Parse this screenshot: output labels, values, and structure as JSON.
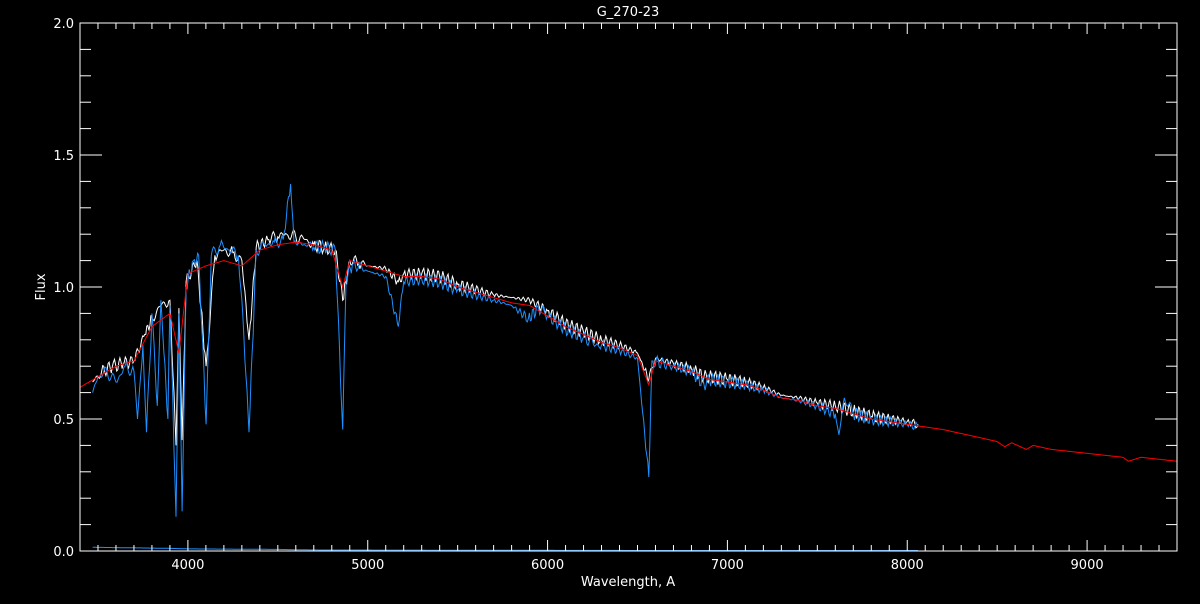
{
  "chart_data": {
    "type": "line",
    "title": "G_270-23",
    "xlabel": "Wavelength, A",
    "ylabel": "Flux",
    "xlim": [
      3400,
      9500
    ],
    "ylim": [
      0.0,
      2.0
    ],
    "xticks": [
      "4000",
      "5000",
      "6000",
      "7000",
      "8000",
      "9000"
    ],
    "yticks": [
      "0.0",
      "0.5",
      "1.0",
      "1.5",
      "2.0"
    ],
    "grid": false,
    "background": "#000000",
    "series": [
      {
        "color": "#ffffff",
        "points": [
          [
            3470,
            0.64
          ],
          [
            3520,
            0.68
          ],
          [
            3580,
            0.7
          ],
          [
            3640,
            0.71
          ],
          [
            3700,
            0.72
          ],
          [
            3760,
            0.82
          ],
          [
            3800,
            0.88
          ],
          [
            3850,
            0.93
          ],
          [
            3900,
            0.95
          ],
          [
            3934,
            0.4
          ],
          [
            3950,
            0.92
          ],
          [
            3968,
            0.42
          ],
          [
            3990,
            1.02
          ],
          [
            4050,
            1.1
          ],
          [
            4101,
            0.7
          ],
          [
            4150,
            1.12
          ],
          [
            4200,
            1.14
          ],
          [
            4250,
            1.13
          ],
          [
            4300,
            1.1
          ],
          [
            4340,
            0.8
          ],
          [
            4380,
            1.15
          ],
          [
            4450,
            1.18
          ],
          [
            4500,
            1.19
          ],
          [
            4550,
            1.2
          ],
          [
            4600,
            1.19
          ],
          [
            4650,
            1.18
          ],
          [
            4700,
            1.16
          ],
          [
            4760,
            1.15
          ],
          [
            4820,
            1.14
          ],
          [
            4861,
            0.95
          ],
          [
            4900,
            1.1
          ],
          [
            4950,
            1.09
          ],
          [
            5000,
            1.08
          ],
          [
            5100,
            1.07
          ],
          [
            5170,
            1.02
          ],
          [
            5200,
            1.05
          ],
          [
            5300,
            1.05
          ],
          [
            5400,
            1.04
          ],
          [
            5500,
            1.01
          ],
          [
            5600,
            0.99
          ],
          [
            5700,
            0.97
          ],
          [
            5800,
            0.96
          ],
          [
            5900,
            0.95
          ],
          [
            6000,
            0.91
          ],
          [
            6100,
            0.86
          ],
          [
            6200,
            0.83
          ],
          [
            6300,
            0.8
          ],
          [
            6400,
            0.78
          ],
          [
            6500,
            0.75
          ],
          [
            6563,
            0.65
          ],
          [
            6600,
            0.73
          ],
          [
            6700,
            0.71
          ],
          [
            6800,
            0.69
          ],
          [
            6870,
            0.66
          ],
          [
            6900,
            0.66
          ],
          [
            7000,
            0.65
          ],
          [
            7100,
            0.64
          ],
          [
            7200,
            0.62
          ],
          [
            7300,
            0.59
          ],
          [
            7400,
            0.58
          ],
          [
            7500,
            0.56
          ],
          [
            7600,
            0.55
          ],
          [
            7700,
            0.53
          ],
          [
            7800,
            0.51
          ],
          [
            7900,
            0.5
          ],
          [
            8000,
            0.49
          ],
          [
            8060,
            0.48
          ]
        ]
      },
      {
        "color": "#1e90ff",
        "points": [
          [
            3470,
            0.6
          ],
          [
            3500,
            0.66
          ],
          [
            3550,
            0.68
          ],
          [
            3600,
            0.64
          ],
          [
            3650,
            0.7
          ],
          [
            3700,
            0.68
          ],
          [
            3720,
            0.5
          ],
          [
            3750,
            0.78
          ],
          [
            3770,
            0.45
          ],
          [
            3800,
            0.9
          ],
          [
            3830,
            0.55
          ],
          [
            3850,
            0.95
          ],
          [
            3889,
            0.5
          ],
          [
            3900,
            0.93
          ],
          [
            3934,
            0.13
          ],
          [
            3950,
            0.9
          ],
          [
            3968,
            0.15
          ],
          [
            3990,
            1.0
          ],
          [
            4030,
            1.1
          ],
          [
            4060,
            1.12
          ],
          [
            4101,
            0.48
          ],
          [
            4130,
            1.12
          ],
          [
            4180,
            1.16
          ],
          [
            4230,
            1.14
          ],
          [
            4280,
            1.12
          ],
          [
            4300,
            0.95
          ],
          [
            4340,
            0.45
          ],
          [
            4380,
            1.14
          ],
          [
            4430,
            1.16
          ],
          [
            4480,
            1.17
          ],
          [
            4530,
            1.18
          ],
          [
            4571,
            1.39
          ],
          [
            4590,
            1.17
          ],
          [
            4650,
            1.16
          ],
          [
            4700,
            1.15
          ],
          [
            4760,
            1.15
          ],
          [
            4820,
            1.14
          ],
          [
            4861,
            0.46
          ],
          [
            4880,
            1.04
          ],
          [
            4920,
            1.09
          ],
          [
            5000,
            1.06
          ],
          [
            5100,
            1.04
          ],
          [
            5170,
            0.85
          ],
          [
            5200,
            1.02
          ],
          [
            5300,
            1.03
          ],
          [
            5400,
            1.02
          ],
          [
            5500,
            0.99
          ],
          [
            5600,
            0.97
          ],
          [
            5700,
            0.95
          ],
          [
            5800,
            0.93
          ],
          [
            5893,
            0.88
          ],
          [
            5950,
            0.92
          ],
          [
            6000,
            0.89
          ],
          [
            6100,
            0.84
          ],
          [
            6200,
            0.81
          ],
          [
            6280,
            0.78
          ],
          [
            6300,
            0.78
          ],
          [
            6400,
            0.76
          ],
          [
            6500,
            0.73
          ],
          [
            6563,
            0.28
          ],
          [
            6580,
            0.72
          ],
          [
            6700,
            0.7
          ],
          [
            6800,
            0.68
          ],
          [
            6870,
            0.63
          ],
          [
            6900,
            0.65
          ],
          [
            7000,
            0.64
          ],
          [
            7100,
            0.63
          ],
          [
            7200,
            0.61
          ],
          [
            7300,
            0.58
          ],
          [
            7400,
            0.57
          ],
          [
            7500,
            0.55
          ],
          [
            7600,
            0.52
          ],
          [
            7620,
            0.44
          ],
          [
            7650,
            0.58
          ],
          [
            7700,
            0.52
          ],
          [
            7800,
            0.5
          ],
          [
            7900,
            0.49
          ],
          [
            8000,
            0.48
          ],
          [
            8060,
            0.47
          ]
        ]
      },
      {
        "color": "#ff0000",
        "points": [
          [
            3400,
            0.62
          ],
          [
            3500,
            0.66
          ],
          [
            3600,
            0.7
          ],
          [
            3700,
            0.72
          ],
          [
            3800,
            0.85
          ],
          [
            3900,
            0.9
          ],
          [
            3950,
            0.75
          ],
          [
            4000,
            1.05
          ],
          [
            4100,
            1.08
          ],
          [
            4200,
            1.1
          ],
          [
            4300,
            1.08
          ],
          [
            4400,
            1.14
          ],
          [
            4500,
            1.16
          ],
          [
            4600,
            1.17
          ],
          [
            4700,
            1.16
          ],
          [
            4800,
            1.14
          ],
          [
            4861,
            1.0
          ],
          [
            4900,
            1.1
          ],
          [
            5000,
            1.08
          ],
          [
            5100,
            1.06
          ],
          [
            5200,
            1.04
          ],
          [
            5300,
            1.04
          ],
          [
            5400,
            1.03
          ],
          [
            5500,
            1.0
          ],
          [
            5600,
            0.98
          ],
          [
            5700,
            0.96
          ],
          [
            5800,
            0.94
          ],
          [
            5900,
            0.93
          ],
          [
            6000,
            0.89
          ],
          [
            6100,
            0.85
          ],
          [
            6200,
            0.82
          ],
          [
            6300,
            0.79
          ],
          [
            6400,
            0.77
          ],
          [
            6500,
            0.74
          ],
          [
            6563,
            0.63
          ],
          [
            6600,
            0.72
          ],
          [
            6700,
            0.7
          ],
          [
            6800,
            0.68
          ],
          [
            6900,
            0.65
          ],
          [
            7000,
            0.64
          ],
          [
            7100,
            0.63
          ],
          [
            7200,
            0.61
          ],
          [
            7300,
            0.58
          ],
          [
            7400,
            0.57
          ],
          [
            7500,
            0.55
          ],
          [
            7600,
            0.54
          ],
          [
            7700,
            0.52
          ],
          [
            7800,
            0.5
          ],
          [
            7900,
            0.49
          ],
          [
            8000,
            0.48
          ],
          [
            8200,
            0.46
          ],
          [
            8400,
            0.43
          ],
          [
            8498,
            0.415
          ],
          [
            8542,
            0.395
          ],
          [
            8580,
            0.41
          ],
          [
            8662,
            0.385
          ],
          [
            8700,
            0.4
          ],
          [
            8800,
            0.385
          ],
          [
            9000,
            0.37
          ],
          [
            9200,
            0.355
          ],
          [
            9230,
            0.34
          ],
          [
            9300,
            0.355
          ],
          [
            9500,
            0.34
          ]
        ]
      },
      {
        "color": "#1e90ff",
        "points": [
          [
            3470,
            0.014
          ],
          [
            3700,
            0.012
          ],
          [
            3900,
            0.01
          ],
          [
            4000,
            0.008
          ],
          [
            4500,
            0.006
          ],
          [
            4700,
            0.004
          ],
          [
            5500,
            0.003
          ],
          [
            6500,
            0.002
          ],
          [
            7600,
            0.002
          ],
          [
            8060,
            0.002
          ]
        ]
      }
    ]
  }
}
